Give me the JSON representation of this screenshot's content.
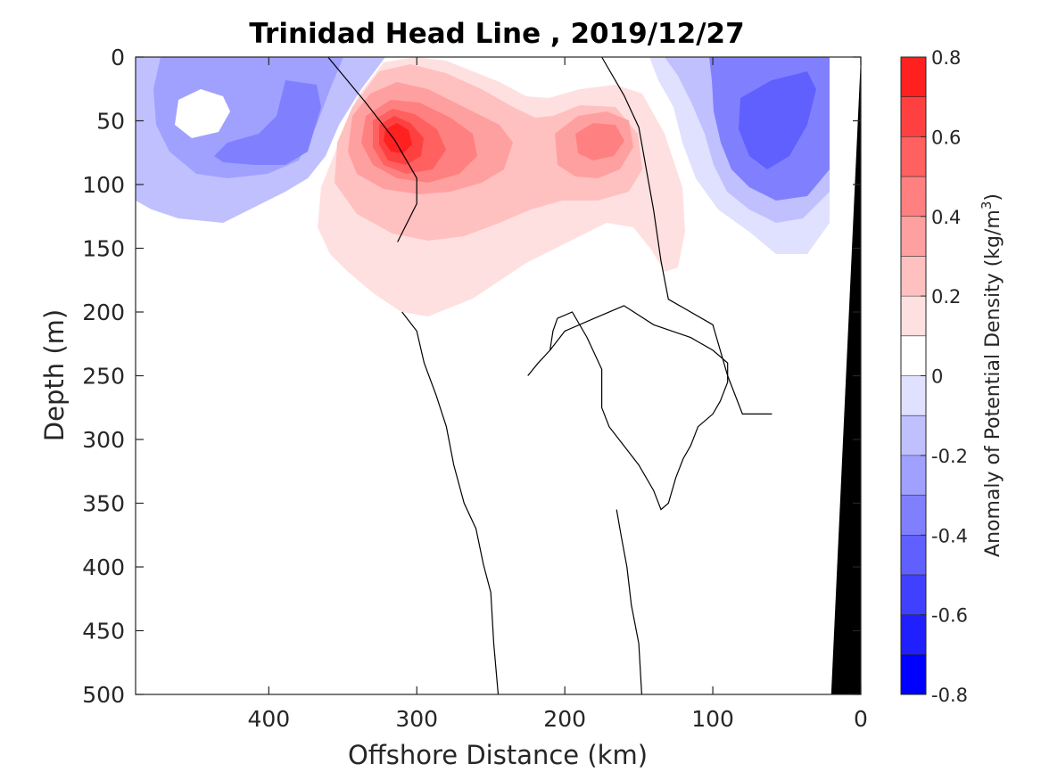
{
  "chart_data": {
    "type": "heatmap",
    "subtype": "filled-contour section",
    "title": "Trinidad Head Line , 2019/12/27",
    "xlabel": "Offshore Distance (km)",
    "ylabel": "Depth (m)",
    "colorbar_label_prefix": "Anomaly of Potential Density (kg/m",
    "colorbar_label_exponent": "3",
    "colorbar_label_suffix": ")",
    "xlim": [
      490,
      0
    ],
    "x_reversed": true,
    "ylim": [
      0,
      500
    ],
    "y_reversed": true,
    "xticks": [
      400,
      300,
      200,
      100,
      0
    ],
    "xtick_labels": [
      "400",
      "300",
      "200",
      "100",
      "0"
    ],
    "yticks": [
      0,
      50,
      100,
      150,
      200,
      250,
      300,
      350,
      400,
      450,
      500
    ],
    "ytick_labels": [
      "0",
      "50",
      "100",
      "150",
      "200",
      "250",
      "300",
      "350",
      "400",
      "450",
      "500"
    ],
    "clim": [
      -0.8,
      0.8
    ],
    "colorbar_levels": [
      -0.8,
      -0.7,
      -0.6,
      -0.5,
      -0.4,
      -0.3,
      -0.2,
      -0.1,
      0,
      0.1,
      0.2,
      0.3,
      0.4,
      0.5,
      0.6,
      0.7,
      0.8
    ],
    "colorbar_colors": [
      "#0000ff",
      "#2020ff",
      "#4040ff",
      "#6060ff",
      "#8080ff",
      "#a0a0ff",
      "#c0c0ff",
      "#e0e0ff",
      "#ffffff",
      "#ffe0e0",
      "#ffc0c0",
      "#ffa0a0",
      "#ff8080",
      "#ff6060",
      "#ff4040",
      "#ff2020"
    ],
    "colorbar_ticks": [
      0.8,
      0.6,
      0.4,
      0.2,
      0,
      -0.2,
      -0.4,
      -0.6,
      -0.8
    ],
    "colorbar_tick_labels": [
      "0.8",
      "0.6",
      "0.4",
      "0.2",
      "0",
      "-0.2",
      "-0.4",
      "-0.6",
      "-0.8"
    ],
    "grid": false,
    "anomaly_features": [
      {
        "sign": "positive",
        "peak_anomaly": 0.7,
        "center_distance_km": 315,
        "center_depth_m": 65,
        "extent_distance_km": [
          360,
          130
        ],
        "extent_depth_m": [
          0,
          205
        ]
      },
      {
        "sign": "positive",
        "peak_anomaly": 0.4,
        "center_distance_km": 180,
        "center_depth_m": 65
      },
      {
        "sign": "negative",
        "peak_anomaly": -0.4,
        "center_distance_km": 420,
        "center_depth_m": 60,
        "extent_distance_km": [
          490,
          360
        ],
        "extent_depth_m": [
          0,
          130
        ]
      },
      {
        "sign": "negative",
        "peak_anomaly": -0.5,
        "center_distance_km": 65,
        "center_depth_m": 60,
        "extent_distance_km": [
          140,
          25
        ],
        "extent_depth_m": [
          0,
          150
        ]
      }
    ],
    "zero_contours_km_m": [
      [
        [
          360,
          0
        ],
        [
          335,
          35
        ],
        [
          315,
          65
        ],
        [
          300,
          95
        ],
        [
          300,
          115
        ],
        [
          313,
          145
        ]
      ],
      [
        [
          175,
          0
        ],
        [
          160,
          30
        ],
        [
          150,
          55
        ],
        [
          140,
          120
        ],
        [
          135,
          160
        ],
        [
          130,
          190
        ],
        [
          100,
          210
        ],
        [
          90,
          250
        ],
        [
          80,
          280
        ],
        [
          60,
          280
        ]
      ],
      [
        [
          225,
          250
        ],
        [
          218,
          240
        ],
        [
          210,
          230
        ],
        [
          208,
          215
        ],
        [
          205,
          205
        ],
        [
          195,
          200
        ],
        [
          185,
          220
        ],
        [
          175,
          245
        ],
        [
          175,
          275
        ],
        [
          170,
          290
        ],
        [
          160,
          305
        ],
        [
          150,
          320
        ],
        [
          140,
          340
        ],
        [
          135,
          355
        ],
        [
          130,
          350
        ],
        [
          125,
          330
        ],
        [
          120,
          315
        ],
        [
          115,
          305
        ],
        [
          110,
          290
        ],
        [
          100,
          280
        ],
        [
          95,
          270
        ],
        [
          90,
          255
        ],
        [
          90,
          240
        ],
        [
          100,
          230
        ],
        [
          115,
          220
        ],
        [
          140,
          210
        ],
        [
          160,
          195
        ],
        [
          180,
          205
        ],
        [
          200,
          215
        ],
        [
          210,
          230
        ]
      ],
      [
        [
          165,
          355
        ],
        [
          162,
          375
        ],
        [
          158,
          400
        ],
        [
          155,
          430
        ],
        [
          150,
          460
        ],
        [
          148,
          500
        ]
      ],
      [
        [
          310,
          200
        ],
        [
          300,
          215
        ],
        [
          295,
          240
        ],
        [
          287,
          265
        ],
        [
          280,
          290
        ],
        [
          275,
          320
        ],
        [
          268,
          350
        ],
        [
          260,
          370
        ],
        [
          255,
          398
        ],
        [
          250,
          420
        ],
        [
          248,
          460
        ],
        [
          245,
          500
        ]
      ]
    ],
    "bathymetry_km_m": [
      [
        20,
        500
      ],
      [
        0,
        0
      ],
      [
        0,
        500
      ]
    ]
  }
}
